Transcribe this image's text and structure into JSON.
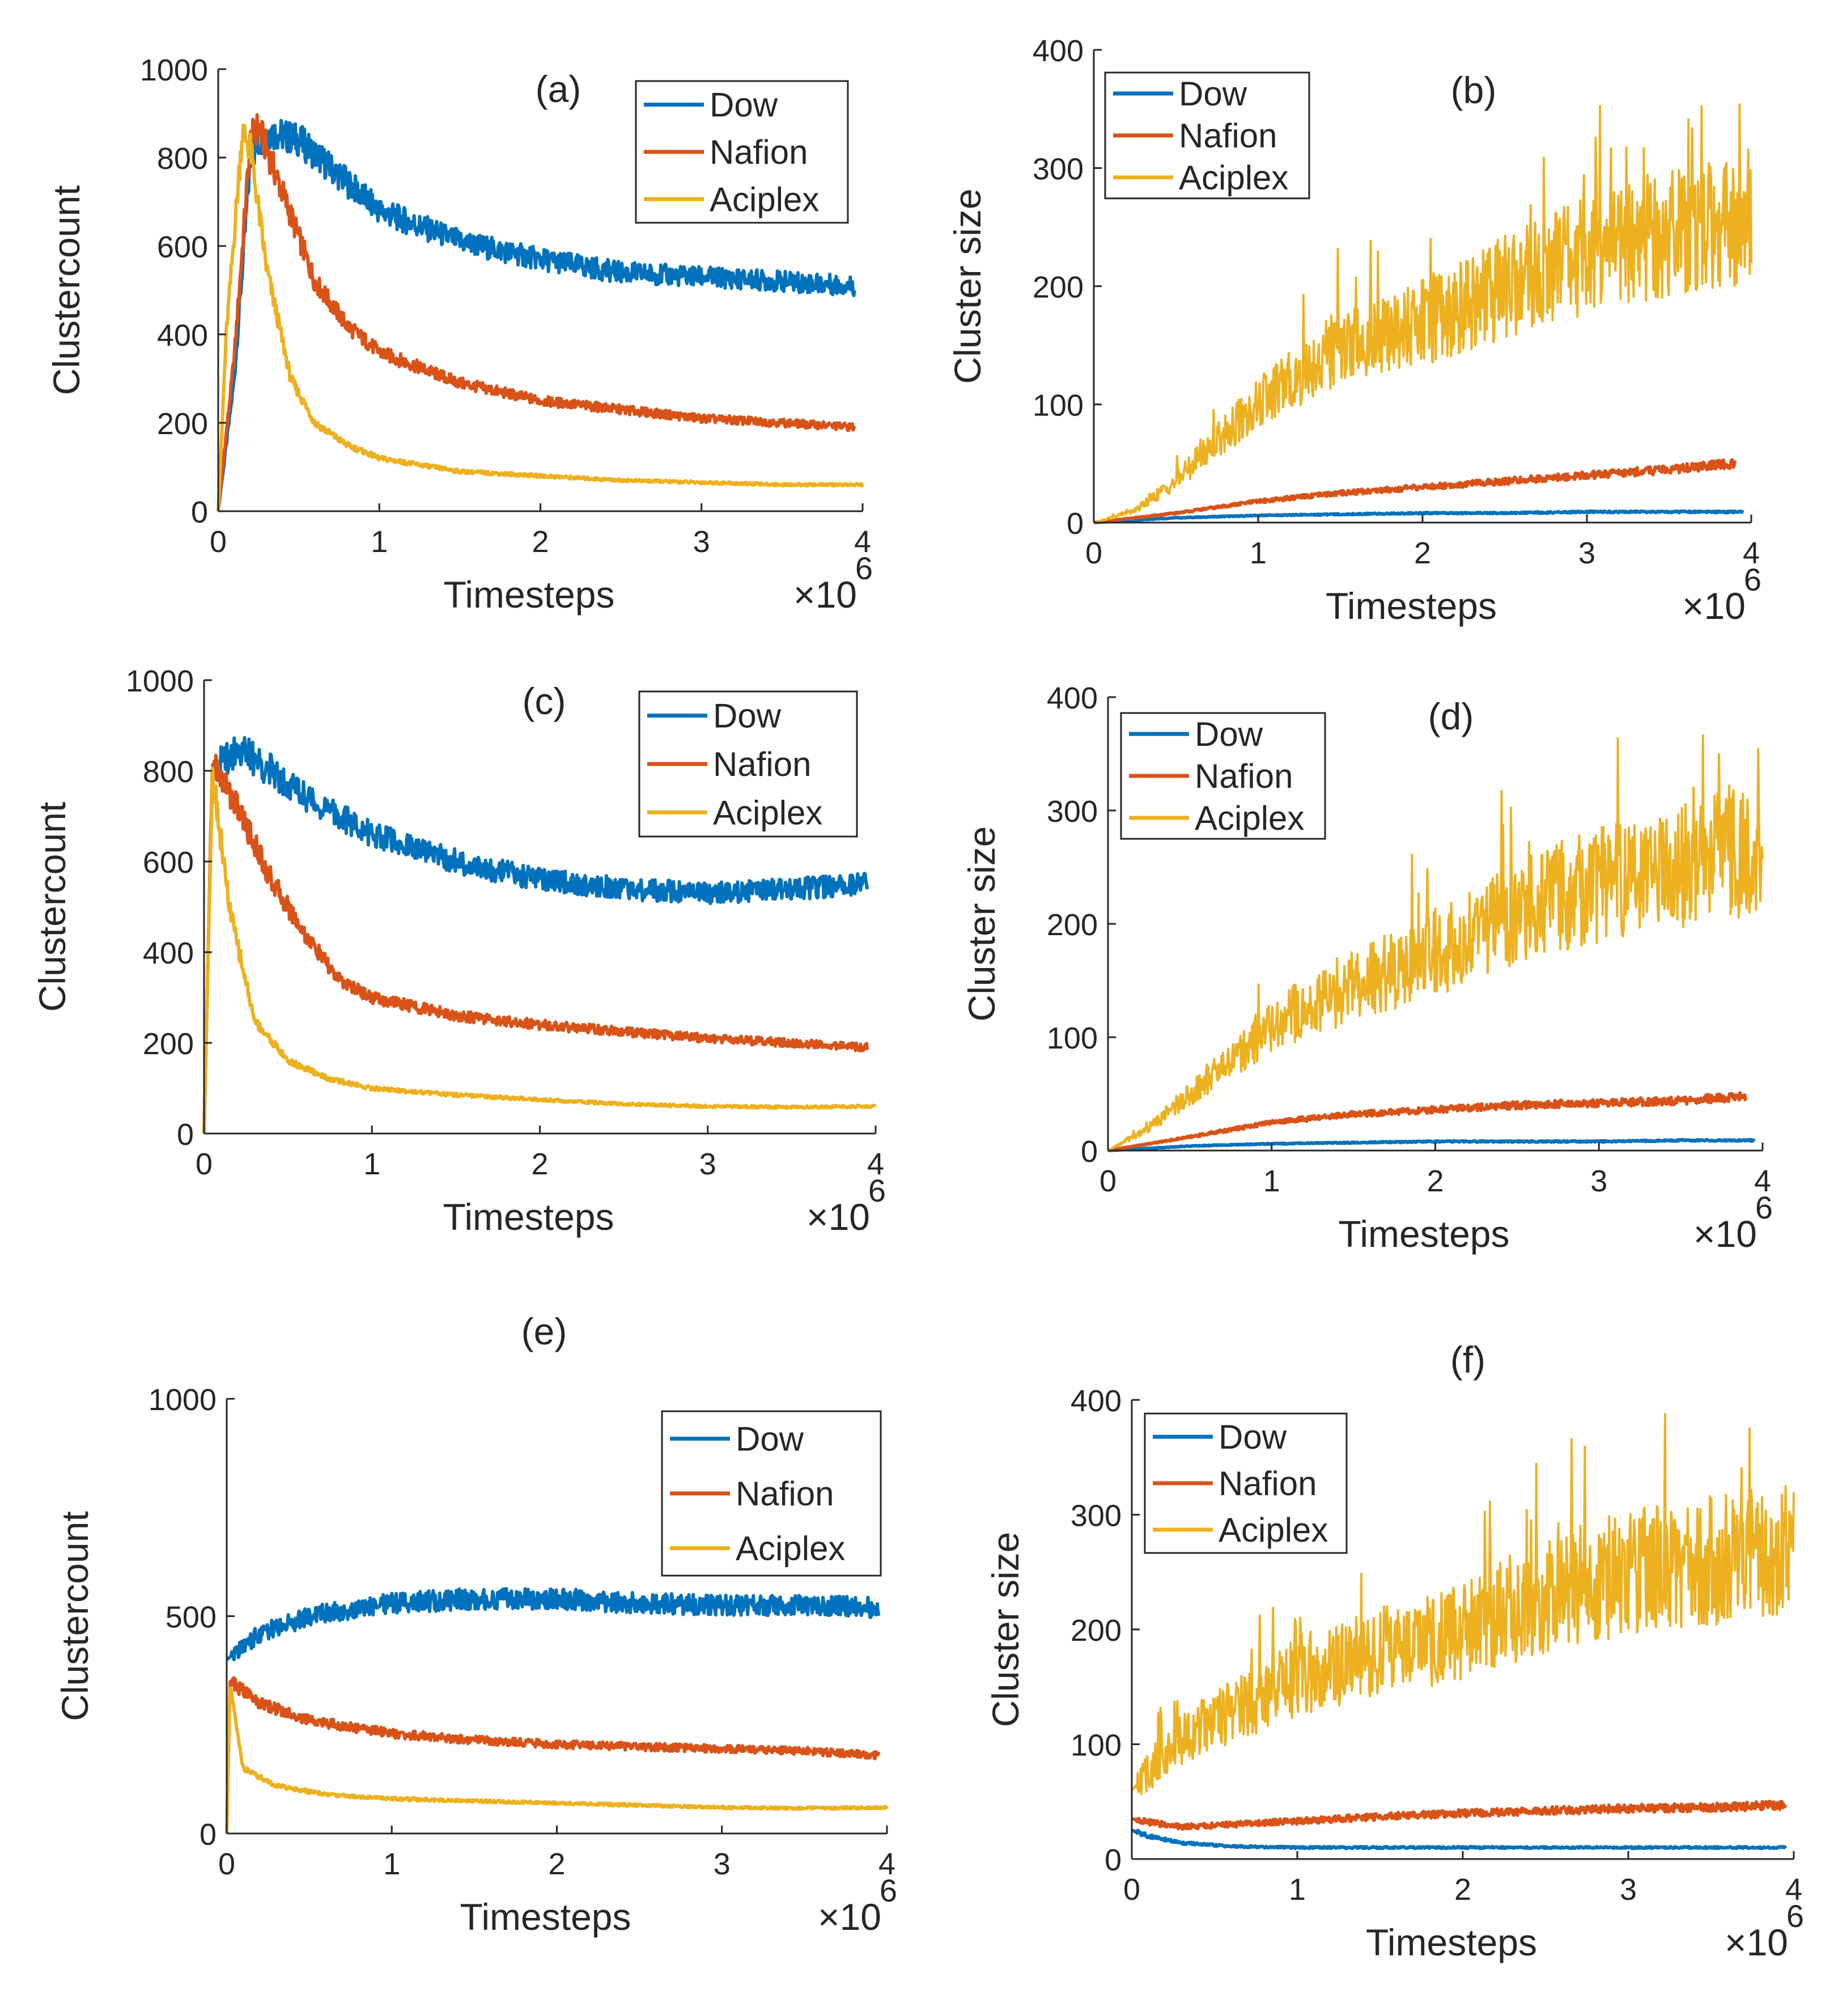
{
  "figure": {
    "x_unit_label": "×10",
    "x_unit_exponent": "6",
    "colors": {
      "Dow": "#0072BD",
      "Nafion": "#D95319",
      "Aciplex": "#EDB120"
    }
  },
  "chart_data": [
    {
      "type": "line",
      "panel": "(a)",
      "xlabel": "Timesteps",
      "ylabel": "Clustercount",
      "xlim": [
        0,
        4
      ],
      "ylim": [
        0,
        1000
      ],
      "xticks": [
        "0",
        "1",
        "2",
        "3",
        "4"
      ],
      "yticks": [
        "0",
        "200",
        "400",
        "600",
        "800",
        "1000"
      ],
      "legend": [
        "Dow",
        "Nafion",
        "Aciplex"
      ],
      "series": [
        {
          "name": "Dow",
          "x": [
            0,
            0.1,
            0.2,
            0.3,
            0.5,
            0.75,
            1,
            1.5,
            2,
            2.5,
            3,
            3.5,
            3.95
          ],
          "values": [
            0,
            300,
            800,
            860,
            840,
            760,
            680,
            610,
            570,
            540,
            530,
            520,
            510
          ]
        },
        {
          "name": "Nafion",
          "x": [
            0,
            0.1,
            0.2,
            0.25,
            0.4,
            0.6,
            0.8,
            1,
            1.5,
            2,
            2.5,
            3,
            3.5,
            3.95
          ],
          "values": [
            0,
            350,
            840,
            870,
            720,
            520,
            420,
            360,
            290,
            250,
            230,
            210,
            200,
            190
          ]
        },
        {
          "name": "Aciplex",
          "x": [
            0,
            0.05,
            0.15,
            0.2,
            0.3,
            0.45,
            0.6,
            0.8,
            1,
            1.5,
            2,
            2.5,
            3,
            3.5,
            4
          ],
          "values": [
            0,
            400,
            860,
            820,
            550,
            300,
            200,
            150,
            120,
            90,
            80,
            70,
            65,
            60,
            60
          ]
        }
      ]
    },
    {
      "type": "line",
      "panel": "(b)",
      "xlabel": "Timesteps",
      "ylabel": "Cluster size",
      "xlim": [
        0,
        4
      ],
      "ylim": [
        0,
        400
      ],
      "xticks": [
        "0",
        "1",
        "2",
        "3",
        "4"
      ],
      "yticks": [
        "0",
        "100",
        "200",
        "300",
        "400"
      ],
      "legend": [
        "Dow",
        "Nafion",
        "Aciplex"
      ],
      "series": [
        {
          "name": "Dow",
          "x": [
            0,
            0.5,
            1,
            1.5,
            2,
            2.5,
            3,
            3.5,
            3.95
          ],
          "values": [
            0,
            4,
            6,
            7,
            8,
            8,
            9,
            9,
            9
          ]
        },
        {
          "name": "Nafion",
          "x": [
            0,
            0.5,
            1,
            1.5,
            2,
            2.5,
            3,
            3.5,
            3.9
          ],
          "values": [
            0,
            8,
            18,
            25,
            30,
            35,
            40,
            45,
            50
          ]
        },
        {
          "name": "Aciplex",
          "x": [
            0,
            0.25,
            0.5,
            0.75,
            1,
            1.25,
            1.5,
            1.75,
            2,
            2.25,
            2.5,
            2.75,
            3,
            3.25,
            3.5,
            3.75,
            4
          ],
          "values": [
            0,
            10,
            35,
            70,
            100,
            125,
            150,
            155,
            170,
            185,
            200,
            215,
            225,
            235,
            245,
            250,
            250
          ]
        }
      ]
    },
    {
      "type": "line",
      "panel": "(c)",
      "xlabel": "Timesteps",
      "ylabel": "Clustercount",
      "xlim": [
        0,
        4
      ],
      "ylim": [
        0,
        1000
      ],
      "xticks": [
        "0",
        "1",
        "2",
        "3",
        "4"
      ],
      "yticks": [
        "0",
        "200",
        "400",
        "600",
        "800",
        "1000"
      ],
      "legend": [
        "Dow",
        "Nafion",
        "Aciplex"
      ],
      "series": [
        {
          "name": "Dow",
          "x": [
            0,
            0.05,
            0.2,
            0.4,
            0.7,
            1,
            1.5,
            2,
            2.5,
            3,
            3.5,
            3.95
          ],
          "values": [
            0,
            800,
            850,
            800,
            720,
            660,
            600,
            560,
            540,
            530,
            540,
            550
          ]
        },
        {
          "name": "Nafion",
          "x": [
            0,
            0.05,
            0.2,
            0.4,
            0.6,
            0.8,
            1,
            1.5,
            2,
            2.5,
            3,
            3.5,
            3.95
          ],
          "values": [
            0,
            820,
            720,
            560,
            440,
            340,
            300,
            260,
            240,
            225,
            210,
            200,
            190
          ]
        },
        {
          "name": "Aciplex",
          "x": [
            0,
            0.05,
            0.15,
            0.3,
            0.5,
            0.75,
            1,
            1.5,
            2,
            2.5,
            3,
            3.5,
            4
          ],
          "values": [
            0,
            800,
            500,
            250,
            160,
            120,
            100,
            85,
            75,
            65,
            60,
            58,
            60
          ]
        }
      ]
    },
    {
      "type": "line",
      "panel": "(d)",
      "xlabel": "Timesteps",
      "ylabel": "Cluster size",
      "xlim": [
        0,
        4
      ],
      "ylim": [
        0,
        400
      ],
      "xticks": [
        "0",
        "1",
        "2",
        "3",
        "4"
      ],
      "yticks": [
        "0",
        "100",
        "200",
        "300",
        "400"
      ],
      "legend": [
        "Dow",
        "Nafion",
        "Aciplex"
      ],
      "series": [
        {
          "name": "Dow",
          "x": [
            0,
            0.5,
            1,
            1.5,
            2,
            2.5,
            3,
            3.5,
            3.95
          ],
          "values": [
            0,
            4,
            6,
            7,
            8,
            8,
            8,
            9,
            9
          ]
        },
        {
          "name": "Nafion",
          "x": [
            0,
            0.5,
            1,
            1.5,
            2,
            2.5,
            3,
            3.5,
            3.9
          ],
          "values": [
            0,
            12,
            25,
            32,
            36,
            40,
            42,
            44,
            48
          ]
        },
        {
          "name": "Aciplex",
          "x": [
            0,
            0.25,
            0.5,
            0.75,
            1,
            1.25,
            1.5,
            1.75,
            2,
            2.25,
            2.5,
            2.75,
            3,
            3.25,
            3.5,
            3.75,
            4
          ],
          "values": [
            0,
            20,
            50,
            80,
            110,
            130,
            145,
            160,
            175,
            190,
            210,
            225,
            235,
            240,
            250,
            260,
            265
          ]
        }
      ]
    },
    {
      "type": "line",
      "panel": "(e)",
      "xlabel": "Timesteps",
      "ylabel": "Clustercount",
      "xlim": [
        0,
        4
      ],
      "ylim": [
        0,
        1000
      ],
      "xticks": [
        "0",
        "1",
        "2",
        "3",
        "4"
      ],
      "yticks": [
        "0",
        "500",
        "1000"
      ],
      "legend": [
        "Dow",
        "Nafion",
        "Aciplex"
      ],
      "series": [
        {
          "name": "Dow",
          "x": [
            0,
            0.2,
            0.5,
            1,
            1.5,
            2,
            2.5,
            3,
            3.5,
            3.95
          ],
          "values": [
            400,
            460,
            500,
            530,
            540,
            540,
            530,
            525,
            525,
            520
          ]
        },
        {
          "name": "Nafion",
          "x": [
            0,
            0.02,
            0.2,
            0.5,
            1,
            1.5,
            2,
            2.5,
            3,
            3.5,
            3.95
          ],
          "values": [
            0,
            350,
            300,
            260,
            230,
            215,
            205,
            200,
            195,
            190,
            180
          ]
        },
        {
          "name": "Aciplex",
          "x": [
            0,
            0.02,
            0.1,
            0.3,
            0.6,
            1,
            1.5,
            2,
            2.5,
            3,
            3.5,
            4
          ],
          "values": [
            0,
            340,
            150,
            110,
            90,
            80,
            75,
            70,
            65,
            60,
            58,
            60
          ]
        }
      ]
    },
    {
      "type": "line",
      "panel": "(f)",
      "xlabel": "Timesteps",
      "ylabel": "Cluster size",
      "xlim": [
        0,
        4
      ],
      "ylim": [
        0,
        400
      ],
      "xticks": [
        "0",
        "1",
        "2",
        "3",
        "4"
      ],
      "yticks": [
        "0",
        "100",
        "200",
        "300",
        "400"
      ],
      "legend": [
        "Dow",
        "Nafion",
        "Aciplex"
      ],
      "series": [
        {
          "name": "Dow",
          "x": [
            0,
            0.1,
            0.3,
            0.6,
            1,
            1.5,
            2,
            2.5,
            3,
            3.5,
            3.95
          ],
          "values": [
            25,
            20,
            14,
            11,
            10,
            10,
            10,
            10,
            10,
            10,
            10
          ]
        },
        {
          "name": "Nafion",
          "x": [
            0,
            0.1,
            0.3,
            0.6,
            1,
            1.5,
            2,
            2.5,
            3,
            3.5,
            3.95
          ],
          "values": [
            35,
            32,
            28,
            30,
            33,
            37,
            40,
            42,
            44,
            45,
            47
          ]
        },
        {
          "name": "Aciplex",
          "x": [
            0,
            0.25,
            0.5,
            0.75,
            1,
            1.25,
            1.5,
            1.75,
            2,
            2.25,
            2.5,
            2.75,
            3,
            3.25,
            3.5,
            3.75,
            4
          ],
          "values": [
            60,
            100,
            120,
            140,
            160,
            170,
            180,
            190,
            200,
            215,
            230,
            240,
            250,
            255,
            260,
            265,
            270
          ]
        }
      ]
    }
  ]
}
